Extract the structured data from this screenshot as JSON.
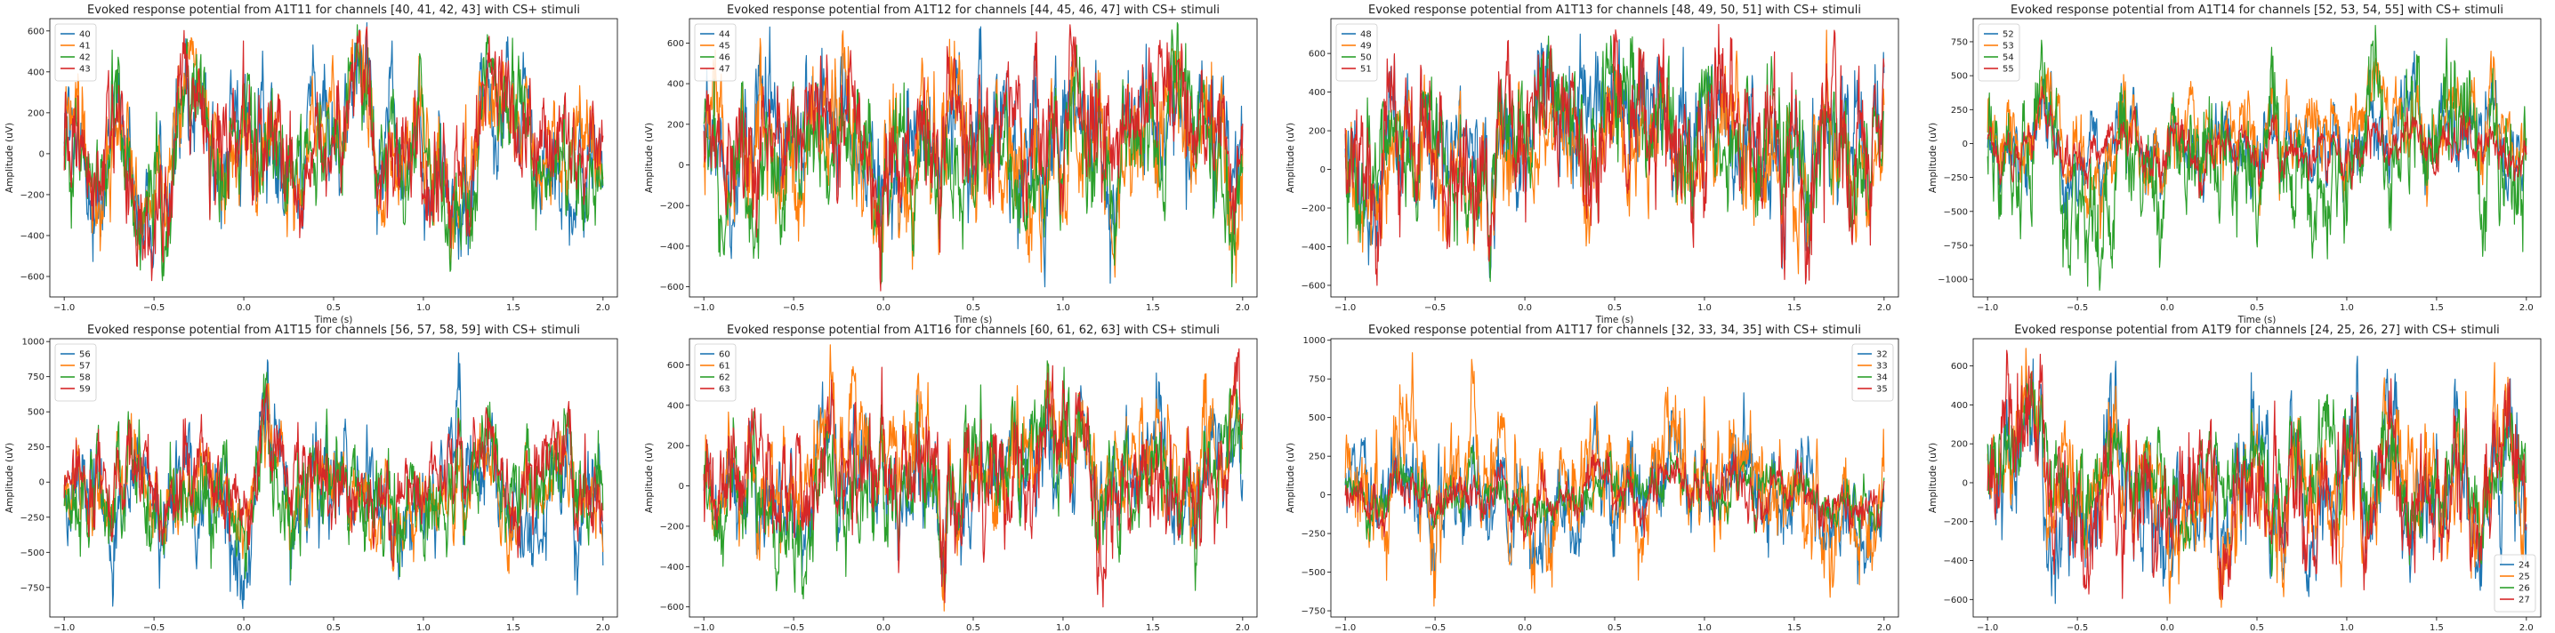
{
  "figure": {
    "background": "#ffffff"
  },
  "series_colors": [
    "#1f77b4",
    "#ff7f0e",
    "#2ca02c",
    "#d62728"
  ],
  "chart_data": [
    {
      "type": "line",
      "title": "Evoked response potential from A1T11 for channels [40, 41, 42, 43] with CS+ stimuli",
      "xlabel": "Time (s)",
      "ylabel": "Amplitude (uV)",
      "xlim": [
        -1.08,
        2.08
      ],
      "ylim": [
        -700,
        660
      ],
      "xticks": [
        -1.0,
        -0.5,
        0.0,
        0.5,
        1.0,
        1.5,
        2.0
      ],
      "xtick_labels": [
        "−1.0",
        "−0.5",
        "0.0",
        "0.5",
        "1.0",
        "1.5",
        "2.0"
      ],
      "yticks": [
        -600,
        -400,
        -200,
        0,
        200,
        400,
        600
      ],
      "legend_position": "upper left",
      "series": [
        {
          "name": "40",
          "color": "#1f77b4",
          "amplitude_range": [
            -560,
            640
          ]
        },
        {
          "name": "41",
          "color": "#ff7f0e",
          "amplitude_range": [
            -540,
            600
          ]
        },
        {
          "name": "42",
          "color": "#2ca02c",
          "amplitude_range": [
            -620,
            630
          ]
        },
        {
          "name": "43",
          "color": "#d62728",
          "amplitude_range": [
            -620,
            620
          ]
        }
      ]
    },
    {
      "type": "line",
      "title": "Evoked response potential from A1T12 for channels [44, 45, 46, 47] with CS+ stimuli",
      "xlabel": "Time (s)",
      "ylabel": "Amplitude (uV)",
      "xlim": [
        -1.08,
        2.08
      ],
      "ylim": [
        -650,
        720
      ],
      "xticks": [
        -1.0,
        -0.5,
        0.0,
        0.5,
        1.0,
        1.5,
        2.0
      ],
      "xtick_labels": [
        "−1.0",
        "−0.5",
        "0.0",
        "0.5",
        "1.0",
        "1.5",
        "2.0"
      ],
      "yticks": [
        -600,
        -400,
        -200,
        0,
        200,
        400,
        600
      ],
      "legend_position": "upper left",
      "series": [
        {
          "name": "44",
          "color": "#1f77b4",
          "amplitude_range": [
            -600,
            680
          ]
        },
        {
          "name": "45",
          "color": "#ff7f0e",
          "amplitude_range": [
            -580,
            660
          ]
        },
        {
          "name": "46",
          "color": "#2ca02c",
          "amplitude_range": [
            -600,
            700
          ]
        },
        {
          "name": "47",
          "color": "#d62728",
          "amplitude_range": [
            -620,
            690
          ]
        }
      ]
    },
    {
      "type": "line",
      "title": "Evoked response potential from A1T13 for channels [48, 49, 50, 51] with CS+ stimuli",
      "xlabel": "Time (s)",
      "ylabel": "Amplitude (uV)",
      "xlim": [
        -1.08,
        2.08
      ],
      "ylim": [
        -660,
        780
      ],
      "xticks": [
        -1.0,
        -0.5,
        0.0,
        0.5,
        1.0,
        1.5,
        2.0
      ],
      "xtick_labels": [
        "−1.0",
        "−0.5",
        "0.0",
        "0.5",
        "1.0",
        "1.5",
        "2.0"
      ],
      "yticks": [
        -600,
        -400,
        -200,
        0,
        200,
        400,
        600
      ],
      "legend_position": "upper left",
      "series": [
        {
          "name": "48",
          "color": "#1f77b4",
          "amplitude_range": [
            -560,
            700
          ]
        },
        {
          "name": "49",
          "color": "#ff7f0e",
          "amplitude_range": [
            -540,
            720
          ]
        },
        {
          "name": "50",
          "color": "#2ca02c",
          "amplitude_range": [
            -580,
            690
          ]
        },
        {
          "name": "51",
          "color": "#d62728",
          "amplitude_range": [
            -600,
            750
          ]
        }
      ]
    },
    {
      "type": "line",
      "title": "Evoked response potential from A1T14 for channels [52, 53, 54, 55] with CS+ stimuli",
      "xlabel": "Time (s)",
      "ylabel": "Amplitude (uV)",
      "xlim": [
        -1.08,
        2.08
      ],
      "ylim": [
        -1130,
        920
      ],
      "xticks": [
        -1.0,
        -0.5,
        0.0,
        0.5,
        1.0,
        1.5,
        2.0
      ],
      "xtick_labels": [
        "−1.0",
        "−0.5",
        "0.0",
        "0.5",
        "1.0",
        "1.5",
        "2.0"
      ],
      "yticks": [
        -1000,
        -750,
        -500,
        -250,
        0,
        250,
        500,
        750
      ],
      "legend_position": "upper left",
      "series": [
        {
          "name": "52",
          "color": "#1f77b4",
          "amplitude_range": [
            -560,
            680
          ]
        },
        {
          "name": "53",
          "color": "#ff7f0e",
          "amplitude_range": [
            -700,
            680
          ]
        },
        {
          "name": "54",
          "color": "#2ca02c",
          "amplitude_range": [
            -1080,
            870
          ]
        },
        {
          "name": "55",
          "color": "#d62728",
          "amplitude_range": [
            -400,
            420
          ]
        }
      ]
    },
    {
      "type": "line",
      "title": "Evoked response potential from A1T15 for channels [56, 57, 58, 59] with CS+ stimuli",
      "xlabel": "Time (s)",
      "ylabel": "Amplitude (uV)",
      "xlim": [
        -1.08,
        2.08
      ],
      "ylim": [
        -960,
        1020
      ],
      "xticks": [
        -1.0,
        -0.5,
        0.0,
        0.5,
        1.0,
        1.5,
        2.0
      ],
      "xtick_labels": [
        "−1.0",
        "−0.5",
        "0.0",
        "0.5",
        "1.0",
        "1.5",
        "2.0"
      ],
      "yticks": [
        -750,
        -500,
        -250,
        0,
        250,
        500,
        750,
        1000
      ],
      "legend_position": "upper left",
      "series": [
        {
          "name": "56",
          "color": "#1f77b4",
          "amplitude_range": [
            -900,
            920
          ]
        },
        {
          "name": "57",
          "color": "#ff7f0e",
          "amplitude_range": [
            -650,
            700
          ]
        },
        {
          "name": "58",
          "color": "#2ca02c",
          "amplitude_range": [
            -700,
            780
          ]
        },
        {
          "name": "59",
          "color": "#d62728",
          "amplitude_range": [
            -600,
            700
          ]
        }
      ]
    },
    {
      "type": "line",
      "title": "Evoked response potential from A1T16 for channels [60, 61, 62, 63] with CS+ stimuli",
      "xlabel": "Time (s)",
      "ylabel": "Amplitude (uV)",
      "xlim": [
        -1.08,
        2.08
      ],
      "ylim": [
        -650,
        730
      ],
      "xticks": [
        -1.0,
        -0.5,
        0.0,
        0.5,
        1.0,
        1.5,
        2.0
      ],
      "xtick_labels": [
        "−1.0",
        "−0.5",
        "0.0",
        "0.5",
        "1.0",
        "1.5",
        "2.0"
      ],
      "yticks": [
        -600,
        -400,
        -200,
        0,
        200,
        400,
        600
      ],
      "legend_position": "upper left",
      "series": [
        {
          "name": "60",
          "color": "#1f77b4",
          "amplitude_range": [
            -500,
            560
          ]
        },
        {
          "name": "61",
          "color": "#ff7f0e",
          "amplitude_range": [
            -620,
            700
          ]
        },
        {
          "name": "62",
          "color": "#2ca02c",
          "amplitude_range": [
            -560,
            620
          ]
        },
        {
          "name": "63",
          "color": "#d62728",
          "amplitude_range": [
            -600,
            680
          ]
        }
      ]
    },
    {
      "type": "line",
      "title": "Evoked response potential from A1T17 for channels [32, 33, 34, 35] with CS+ stimuli",
      "xlabel": "Time (s)",
      "ylabel": "Amplitude (uV)",
      "xlim": [
        -1.08,
        2.08
      ],
      "ylim": [
        -790,
        1010
      ],
      "xticks": [
        -1.0,
        -0.5,
        0.0,
        0.5,
        1.0,
        1.5,
        2.0
      ],
      "xtick_labels": [
        "−1.0",
        "−0.5",
        "0.0",
        "0.5",
        "1.0",
        "1.5",
        "2.0"
      ],
      "yticks": [
        -750,
        -500,
        -250,
        0,
        250,
        500,
        750,
        1000
      ],
      "legend_position": "upper right",
      "series": [
        {
          "name": "32",
          "color": "#1f77b4",
          "amplitude_range": [
            -620,
            660
          ]
        },
        {
          "name": "33",
          "color": "#ff7f0e",
          "amplitude_range": [
            -720,
            920
          ]
        },
        {
          "name": "34",
          "color": "#2ca02c",
          "amplitude_range": [
            -300,
            320
          ]
        },
        {
          "name": "35",
          "color": "#d62728",
          "amplitude_range": [
            -300,
            300
          ]
        }
      ]
    },
    {
      "type": "line",
      "title": "Evoked response potential from A1T9 for channels [24, 25, 26, 27] with CS+ stimuli",
      "xlabel": "Time (s)",
      "ylabel": "Amplitude (uV)",
      "xlim": [
        -1.08,
        2.08
      ],
      "ylim": [
        -690,
        740
      ],
      "xticks": [
        -1.0,
        -0.5,
        0.0,
        0.5,
        1.0,
        1.5,
        2.0
      ],
      "xtick_labels": [
        "−1.0",
        "−0.5",
        "0.0",
        "0.5",
        "1.0",
        "1.5",
        "2.0"
      ],
      "yticks": [
        -600,
        -400,
        -200,
        0,
        200,
        400,
        600
      ],
      "legend_position": "lower right",
      "series": [
        {
          "name": "24",
          "color": "#1f77b4",
          "amplitude_range": [
            -620,
            650
          ]
        },
        {
          "name": "25",
          "color": "#ff7f0e",
          "amplitude_range": [
            -640,
            690
          ]
        },
        {
          "name": "26",
          "color": "#2ca02c",
          "amplitude_range": [
            -480,
            560
          ]
        },
        {
          "name": "27",
          "color": "#d62728",
          "amplitude_range": [
            -600,
            680
          ]
        }
      ]
    }
  ]
}
